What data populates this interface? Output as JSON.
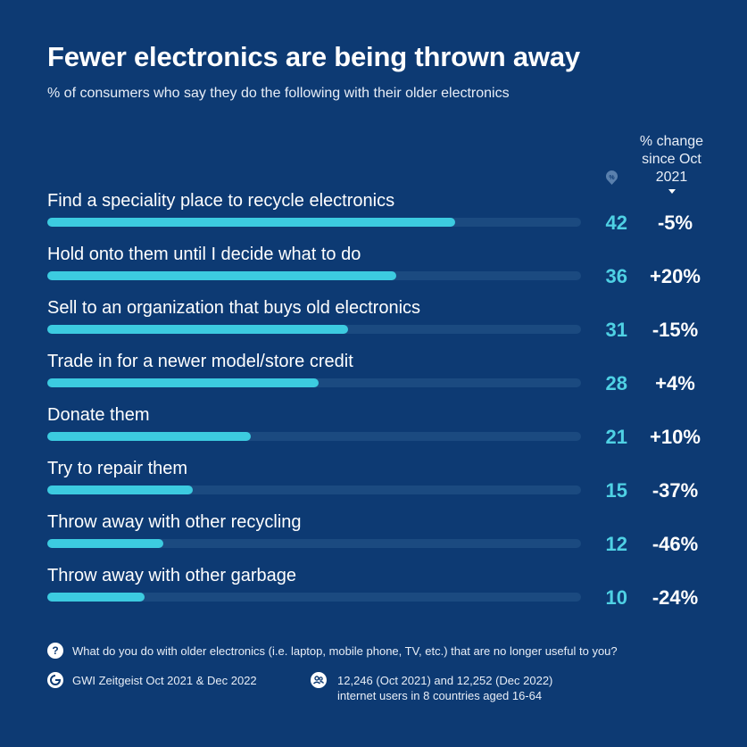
{
  "header": {
    "title": "Fewer electronics are being thrown away",
    "subtitle": "% of consumers who say they do the following with their older electronics",
    "pct_badge": "%",
    "change_header": "% change since Oct 2021"
  },
  "chart_data": {
    "type": "bar",
    "orientation": "horizontal",
    "title": "Fewer electronics are being thrown away",
    "subtitle": "% of consumers who say they do the following with their older electronics",
    "categories": [
      "Find a speciality place to recycle electronics",
      "Hold onto them until I decide what to do",
      "Sell to an organization that buys old electronics",
      "Trade in for a newer model/store credit",
      "Donate them",
      "Try to repair them",
      "Throw away with other recycling",
      "Throw away with other garbage"
    ],
    "values": [
      42,
      36,
      31,
      28,
      21,
      15,
      12,
      10
    ],
    "changes": [
      "-5%",
      "+20%",
      "-15%",
      "+4%",
      "+10%",
      "-37%",
      "-46%",
      "-24%"
    ],
    "xlim": [
      0,
      55
    ],
    "colors": {
      "bar": "#3ccbe0",
      "track": "#1b4a80",
      "value_text": "#4fd1e4",
      "background": "#0d3a73"
    }
  },
  "footer": {
    "question_icon": "?",
    "question": "What do you do with older electronics (i.e. laptop, mobile phone, TV, etc.) that are no longer useful to you?",
    "source": "GWI Zeitgeist Oct 2021 & Dec 2022",
    "sample_line1": "12,246 (Oct 2021) and 12,252 (Dec 2022)",
    "sample_line2": "internet users in 8 countries aged 16-64"
  },
  "icons": {
    "question": "question-icon",
    "source": "gwi-logo-icon",
    "sample": "users-icon",
    "percent": "percent-badge-icon",
    "sort": "caret-down-icon"
  }
}
